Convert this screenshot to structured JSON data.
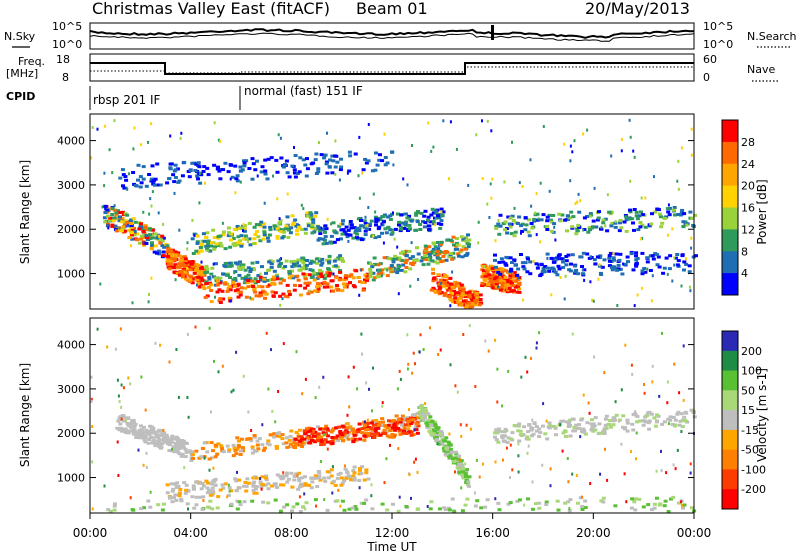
{
  "header": {
    "title": "Christmas Valley East (fitACF)",
    "beam": "Beam 01",
    "date": "20/May/2013"
  },
  "strip": {
    "left_label_1": "N.Sky",
    "left_label_2": "Freq.",
    "left_label_3": "[MHz]",
    "left_label_4": "CPID",
    "right_label_1": "N.Search",
    "right_label_2": "Nave",
    "noise_ticks": [
      "10^5",
      "10^0"
    ],
    "freq_ticks": [
      "18",
      "8"
    ],
    "nave_ticks": [
      "60",
      "0"
    ],
    "cpid_1": "rbsp 201 IF",
    "cpid_2": "normal (fast) 151 IF"
  },
  "chart_data": [
    {
      "type": "heatmap",
      "ylabel": "Slant Range [km]",
      "xlabel": "Time UT",
      "x_ticks": [
        "00:00",
        "04:00",
        "08:00",
        "12:00",
        "16:00",
        "20:00",
        "00:00"
      ],
      "y_ticks": [
        "4000",
        "3000",
        "2000",
        "1000"
      ],
      "ylim": [
        200,
        4600
      ],
      "colorbar": {
        "label": "Power [dB]",
        "ticks": [
          "28",
          "24",
          "20",
          "16",
          "12",
          "8",
          "4"
        ],
        "colors": [
          "#ff0000",
          "#ff6a00",
          "#ffa500",
          "#ffd200",
          "#9ad23c",
          "#2e9a5c",
          "#1f6eb4",
          "#0000ff"
        ]
      }
    },
    {
      "type": "heatmap",
      "ylabel": "Slant Range [km]",
      "xlabel": "Time UT",
      "x_ticks": [
        "00:00",
        "04:00",
        "08:00",
        "12:00",
        "16:00",
        "20:00",
        "00:00"
      ],
      "y_ticks": [
        "4000",
        "3000",
        "2000",
        "1000"
      ],
      "ylim": [
        200,
        4600
      ],
      "colorbar": {
        "label": "Velocity [m s-1]",
        "ticks": [
          "200",
          "100",
          "50",
          "15",
          "-15",
          "-50",
          "-100",
          "-200"
        ],
        "colors": [
          "#2a2ab4",
          "#1f8c46",
          "#58c032",
          "#a8d878",
          "#bebebe",
          "#ffa500",
          "#ff7f00",
          "#ff3c00",
          "#ff0000"
        ]
      }
    }
  ]
}
